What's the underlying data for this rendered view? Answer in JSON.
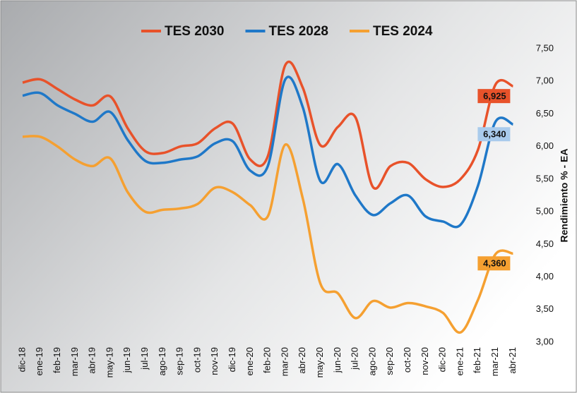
{
  "chart_data": {
    "type": "line",
    "y_axis_label": "Rendimiento % - EA",
    "categories": [
      "dic-18",
      "ene-19",
      "feb-19",
      "mar-19",
      "abr-19",
      "may-19",
      "jun-19",
      "jul-19",
      "ago-19",
      "sep-19",
      "oct-19",
      "nov-19",
      "dic-19",
      "ene-20",
      "feb-20",
      "mar-20",
      "abr-20",
      "may-20",
      "jun-20",
      "jul-20",
      "ago-20",
      "sep-20",
      "oct-20",
      "nov-20",
      "dic-20",
      "ene-21",
      "feb-21",
      "mar-21",
      "abr-21"
    ],
    "series": [
      {
        "name": "TES 2030",
        "color": "#e8522a",
        "label_fill": "#e8522a",
        "values": [
          6.98,
          7.03,
          6.88,
          6.72,
          6.63,
          6.77,
          6.28,
          5.93,
          5.9,
          6.0,
          6.05,
          6.28,
          6.35,
          5.8,
          5.85,
          7.25,
          6.9,
          6.02,
          6.3,
          6.45,
          5.38,
          5.7,
          5.75,
          5.5,
          5.38,
          5.5,
          5.95,
          6.95,
          6.925
        ],
        "value_labels": [
          null,
          null,
          null,
          null,
          null,
          null,
          null,
          null,
          null,
          null,
          null,
          null,
          null,
          null,
          null,
          null,
          null,
          null,
          null,
          null,
          null,
          null,
          null,
          null,
          null,
          null,
          null,
          null,
          "6,925"
        ]
      },
      {
        "name": "TES 2028",
        "color": "#1f78c8",
        "label_fill": "#a9cbec",
        "values": [
          6.78,
          6.82,
          6.63,
          6.5,
          6.38,
          6.53,
          6.1,
          5.78,
          5.75,
          5.8,
          5.85,
          6.05,
          6.08,
          5.63,
          5.7,
          7.03,
          6.6,
          5.47,
          5.73,
          5.25,
          4.95,
          5.13,
          5.25,
          4.93,
          4.85,
          4.8,
          5.4,
          6.38,
          6.34
        ],
        "value_labels": [
          null,
          null,
          null,
          null,
          null,
          null,
          null,
          null,
          null,
          null,
          null,
          null,
          null,
          null,
          null,
          null,
          null,
          null,
          null,
          null,
          null,
          null,
          null,
          null,
          null,
          null,
          null,
          null,
          "6,340"
        ]
      },
      {
        "name": "TES 2024",
        "color": "#f5a031",
        "label_fill": "#f5a031",
        "values": [
          6.15,
          6.15,
          6.0,
          5.8,
          5.7,
          5.82,
          5.3,
          5.0,
          5.03,
          5.05,
          5.12,
          5.37,
          5.3,
          5.1,
          4.93,
          6.03,
          5.2,
          3.9,
          3.75,
          3.37,
          3.63,
          3.53,
          3.6,
          3.55,
          3.45,
          3.15,
          3.65,
          4.35,
          4.36
        ],
        "value_labels": [
          null,
          null,
          null,
          null,
          null,
          null,
          null,
          null,
          null,
          null,
          null,
          null,
          null,
          null,
          null,
          null,
          null,
          null,
          null,
          null,
          null,
          null,
          null,
          null,
          null,
          null,
          null,
          null,
          "4,360"
        ]
      }
    ],
    "ylim": [
      3,
      7.5
    ],
    "yticks": [
      {
        "value": 3,
        "label": "3,00"
      },
      {
        "value": 3.5,
        "label": "3,50"
      },
      {
        "value": 4,
        "label": "4,00"
      },
      {
        "value": 4.5,
        "label": "4,50"
      },
      {
        "value": 5,
        "label": "5,00"
      },
      {
        "value": 5.5,
        "label": "5,50"
      },
      {
        "value": 6,
        "label": "6,00"
      },
      {
        "value": 6.5,
        "label": "6,50"
      },
      {
        "value": 7,
        "label": "7,00"
      },
      {
        "value": 7.5,
        "label": "7,50"
      }
    ],
    "legend": "top"
  }
}
